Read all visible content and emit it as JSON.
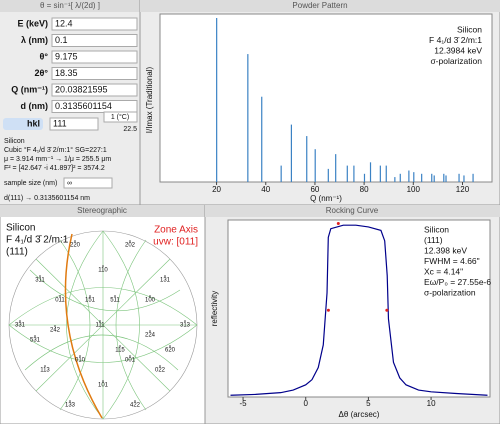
{
  "calculator": {
    "title": "θ = sin⁻¹[ λ/(2d) ]",
    "fields": [
      {
        "label": "E (keV)",
        "value": "12.4"
      },
      {
        "label": "λ (nm)",
        "value": "0.1"
      },
      {
        "label": "θ°",
        "value": "9.175"
      },
      {
        "label": "2θ°",
        "value": "18.35"
      },
      {
        "label": "Q (nm⁻¹)",
        "value": "20.03821595"
      },
      {
        "label": "d (nm)",
        "value": "0.3135601154"
      }
    ],
    "hkl": {
      "label": "hkl",
      "value": "111"
    },
    "temperature": {
      "label": "1 (°C)",
      "value": "22.5"
    },
    "info": [
      "Silicon",
      "Cubic   °F 4₁/d 3̄ 2/m:1°   SG=227:1",
      "μ = 3.914 mm⁻¹ → 1/μ = 255.5 μm",
      "F² = [42.647 -i 41.897]² = 3574.2"
    ],
    "sample_size": {
      "label": "sample size (nm)",
      "value": "∞"
    },
    "status": "d(111) → 0.3135601154 nm"
  },
  "chart_data": [
    {
      "type": "stem",
      "title": "Powder Pattern",
      "x_label": "Q (nm⁻¹)",
      "y_label": "I/Imax  (Traditional)",
      "annotations": [
        "Silicon",
        "F 4₁/d 3̄ 2/m:1",
        "12.3984 keV",
        "σ-polarization"
      ],
      "x": [
        20.04,
        32.72,
        38.37,
        46.27,
        50.43,
        56.67,
        60.11,
        65.44,
        68.44,
        73.16,
        75.85,
        80.15,
        82.6,
        86.6,
        89.0,
        92.5,
        94.7,
        98.2,
        100.2,
        103.4,
        107.5,
        108.5,
        112.4,
        113.3,
        118.6,
        120.6,
        124.3
      ],
      "values": [
        1.0,
        0.78,
        0.52,
        0.1,
        0.35,
        0.28,
        0.2,
        0.08,
        0.17,
        0.1,
        0.1,
        0.05,
        0.12,
        0.1,
        0.1,
        0.03,
        0.05,
        0.07,
        0.06,
        0.05,
        0.05,
        0.04,
        0.05,
        0.04,
        0.05,
        0.04,
        0.05
      ],
      "color": "#3b82c4",
      "xlim": [
        -3,
        132
      ],
      "ylim": [
        0,
        1
      ],
      "xticks": [
        20,
        40,
        60,
        80,
        100,
        120
      ]
    },
    {
      "type": "line",
      "title": "Rocking Curve",
      "x_label": "Δθ (arcsec)",
      "y_label": "reflectivity",
      "annotations": [
        "Silicon",
        "(111)",
        "12.398 keV",
        "FWHM = 4.66\"",
        "Xc = 4.14\"",
        "Eω/P₀ = 27.55e-6",
        "σ-polarization"
      ],
      "x": [
        -6,
        -4,
        -2,
        -1,
        0,
        0.5,
        1,
        1.4,
        1.7,
        1.8,
        2,
        3,
        4,
        5,
        6,
        6.3,
        6.5,
        6.6,
        7,
        7.5,
        8,
        9,
        10,
        12,
        14.5
      ],
      "series": [
        {
          "color": "#00008b",
          "values": [
            0.01,
            0.015,
            0.025,
            0.04,
            0.07,
            0.1,
            0.17,
            0.3,
            0.6,
            0.92,
            0.97,
            0.99,
            0.99,
            0.98,
            0.96,
            0.9,
            0.7,
            0.45,
            0.2,
            0.11,
            0.07,
            0.04,
            0.03,
            0.02,
            0.01
          ]
        }
      ],
      "markers": {
        "color": "#e02020",
        "x": [
          1.81,
          6.47,
          2.6
        ],
        "values": [
          0.5,
          0.5,
          1.0
        ]
      },
      "xlim": [
        -6.2,
        14.7
      ],
      "ylim": [
        0,
        1.02
      ],
      "xticks": [
        -5,
        0,
        5,
        10
      ]
    }
  ],
  "stereographic": {
    "title": "Stereographic",
    "annotations": [
      "Silicon",
      "F 4₁/d 3̄ 2/m:1",
      "(111)"
    ],
    "zone_axis": [
      "Zone Axis",
      "uvw: [011]"
    ],
    "poles": [
      "111",
      "011",
      "100",
      "010",
      "001",
      "110",
      "101",
      "311",
      "131",
      "113",
      "022",
      "220",
      "202",
      "331",
      "313",
      "133",
      "422",
      "242",
      "224",
      "511",
      "151",
      "115",
      "531",
      "620"
    ]
  }
}
